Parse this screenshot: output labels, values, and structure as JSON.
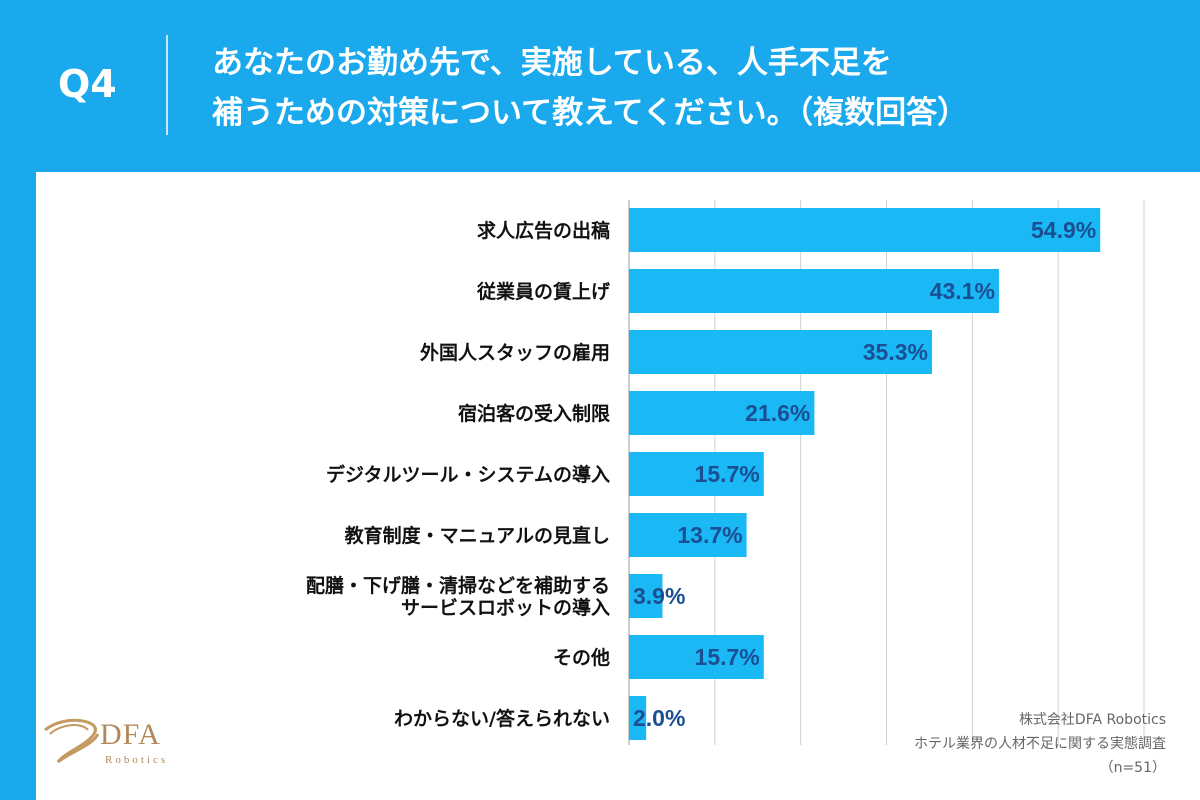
{
  "question": {
    "number": "Q4",
    "line1": "あなたのお勤め先で、実施している、人手不足を",
    "line2": "補うための対策について教えてください。（複数回答）"
  },
  "chart_data": {
    "type": "bar",
    "orientation": "horizontal",
    "categories": [
      "求人広告の出稿",
      "従業員の賃上げ",
      "外国人スタッフの雇用",
      "宿泊客の受入制限",
      "デジタルツール・システムの導入",
      "教育制度・マニュアルの見直し",
      "配膳・下げ膳・清掃などを補助する\nサービスロボットの導入",
      "その他",
      "わからない/答えられない"
    ],
    "values": [
      54.9,
      43.1,
      35.3,
      21.6,
      15.7,
      13.7,
      3.9,
      15.7,
      2.0
    ],
    "value_labels": [
      "54.9%",
      "43.1%",
      "35.3%",
      "21.6%",
      "15.7%",
      "13.7%",
      "3.9%",
      "15.7%",
      "2.0%"
    ],
    "xlim": [
      0,
      60
    ],
    "grid": true,
    "bar_color": "#1ab8f5"
  },
  "logo": {
    "name": "DFA",
    "sub": "Robotics"
  },
  "source": {
    "company": "株式会社DFA Robotics",
    "survey": "ホテル業界の人材不足に関する実態調査",
    "n": "（n=51）"
  }
}
